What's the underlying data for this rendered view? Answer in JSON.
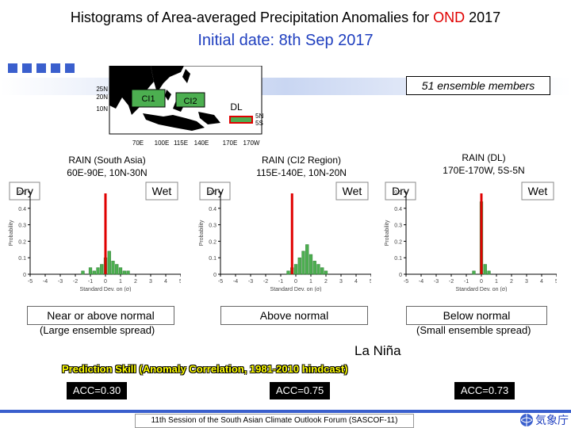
{
  "header": {
    "title_prefix": "Histograms of Area-averaged Precipitation Anomalies for ",
    "title_highlight": "OND",
    "title_suffix": " 2017",
    "subtitle": "Initial date: 8th Sep 2017",
    "ensemble_label": "51 ensemble members"
  },
  "map": {
    "lat_labels": [
      "25N",
      "20N",
      "10N"
    ],
    "lon_labels": [
      "70E",
      "100E",
      "115E",
      "140E",
      "170E",
      "170W"
    ],
    "region_labels": [
      "CI1",
      "CI2",
      "DL"
    ],
    "dl_lat_labels": [
      "5N",
      "5S"
    ]
  },
  "panels": [
    {
      "title_line1": "RAIN (South Asia)",
      "title_line2": "60E-90E, 10N-30N",
      "dry_label": "Dry",
      "wet_label": "Wet",
      "verdict": "Near or above normal",
      "spread": "(Large ensemble spread)",
      "acc": "ACC=0.30"
    },
    {
      "title_line1": "RAIN (CI2 Region)",
      "title_line2": "115E-140E, 10N-20N",
      "dry_label": "Dry",
      "wet_label": "Wet",
      "verdict": "Above normal",
      "spread": "",
      "acc": "ACC=0.75"
    },
    {
      "title_line1": "RAIN (DL)",
      "title_line2": "170E-170W, 5S-5N",
      "dry_label": "Dry",
      "wet_label": "Wet",
      "verdict": "Below normal",
      "spread": "(Small ensemble spread)",
      "acc": "ACC=0.73"
    }
  ],
  "axis": {
    "ylabel": "Probability",
    "xlabel": "Standard Dev. on (σ)",
    "y_ticks": [
      "0.5",
      "0.4",
      "0.3",
      "0.2",
      "0.1",
      "0"
    ],
    "x_ticks": [
      "-5",
      "-4",
      "-3",
      "-2",
      "-1",
      "0",
      "1",
      "2",
      "3",
      "4",
      "5"
    ]
  },
  "enso_label": "La Niña",
  "skill_label": "Prediction Skill (Anomaly Correlation, 1981-2010 hindcast)",
  "footer": "11th Session of the South Asian Climate Outlook Forum (SASCOF-11)",
  "logo_text": "気象庁",
  "colors": {
    "bar": "#4caf50",
    "observed_line": "#e00000",
    "accent_blue": "#3a5fcd",
    "skill_text": "#ffff00"
  },
  "chart_data": [
    {
      "type": "bar",
      "title": "RAIN (South Asia) 60E-90E, 10N-30N",
      "xlabel": "Standard Dev. on (σ)",
      "ylabel": "Probability",
      "x": [
        -1.5,
        -1.0,
        -0.75,
        -0.5,
        -0.25,
        0.0,
        0.25,
        0.5,
        0.75,
        1.0,
        1.25,
        1.5
      ],
      "values": [
        0.02,
        0.04,
        0.02,
        0.04,
        0.06,
        0.1,
        0.14,
        0.08,
        0.06,
        0.04,
        0.02,
        0.02
      ],
      "xlim": [
        -5,
        5
      ],
      "ylim": [
        0,
        0.5
      ],
      "marker_x": 0.0
    },
    {
      "type": "bar",
      "title": "RAIN (CI2 Region) 115E-140E, 10N-20N",
      "xlabel": "Standard Dev. on (σ)",
      "ylabel": "Probability",
      "x": [
        -0.5,
        -0.25,
        0.0,
        0.25,
        0.5,
        0.75,
        1.0,
        1.25,
        1.5,
        1.75,
        2.0
      ],
      "values": [
        0.02,
        0.04,
        0.06,
        0.1,
        0.14,
        0.18,
        0.12,
        0.08,
        0.06,
        0.04,
        0.02
      ],
      "xlim": [
        -5,
        5
      ],
      "ylim": [
        0,
        0.5
      ],
      "marker_x": -0.25
    },
    {
      "type": "bar",
      "title": "RAIN (DL) 170E-170W, 5S-5N",
      "xlabel": "Standard Dev. on (σ)",
      "ylabel": "Probability",
      "x": [
        -0.5,
        0.0,
        0.25,
        0.5
      ],
      "values": [
        0.02,
        0.44,
        0.06,
        0.02
      ],
      "xlim": [
        -5,
        5
      ],
      "ylim": [
        0,
        0.5
      ],
      "marker_x": 0.0
    }
  ]
}
